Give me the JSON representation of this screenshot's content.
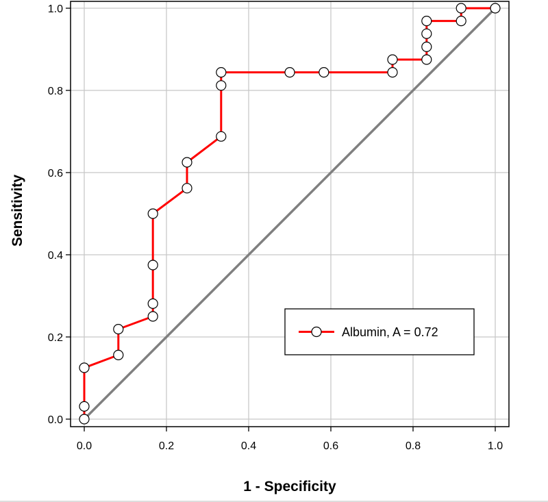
{
  "chart_data": {
    "type": "line",
    "title": "",
    "xlabel": "1 - Specificity",
    "ylabel": "Sensitivity",
    "xlim": [
      0.0,
      1.0
    ],
    "ylim": [
      0.0,
      1.0
    ],
    "x_ticks": [
      "0.0",
      "0.2",
      "0.4",
      "0.6",
      "0.8",
      "1.0"
    ],
    "y_ticks": [
      "0.0",
      "0.2",
      "0.4",
      "0.6",
      "0.8",
      "1.0"
    ],
    "grid": true,
    "legend_position": "bottom-right",
    "series": [
      {
        "name": "Albumin, A = 0.72",
        "color": "#ff0000",
        "marker": "open-circle",
        "step": true,
        "points": [
          [
            0.0,
            0.0
          ],
          [
            0.0,
            0.031
          ],
          [
            0.0,
            0.125
          ],
          [
            0.083,
            0.156
          ],
          [
            0.083,
            0.219
          ],
          [
            0.167,
            0.25
          ],
          [
            0.167,
            0.281
          ],
          [
            0.167,
            0.375
          ],
          [
            0.167,
            0.5
          ],
          [
            0.25,
            0.562
          ],
          [
            0.25,
            0.625
          ],
          [
            0.333,
            0.688
          ],
          [
            0.333,
            0.812
          ],
          [
            0.333,
            0.844
          ],
          [
            0.5,
            0.844
          ],
          [
            0.583,
            0.844
          ],
          [
            0.75,
            0.844
          ],
          [
            0.75,
            0.875
          ],
          [
            0.833,
            0.875
          ],
          [
            0.833,
            0.906
          ],
          [
            0.833,
            0.938
          ],
          [
            0.833,
            0.969
          ],
          [
            0.917,
            0.969
          ],
          [
            0.917,
            1.0
          ],
          [
            1.0,
            1.0
          ]
        ]
      }
    ],
    "reference_line": {
      "color": "#808080",
      "from": [
        0.0,
        0.0
      ],
      "to": [
        1.0,
        1.0
      ]
    }
  }
}
